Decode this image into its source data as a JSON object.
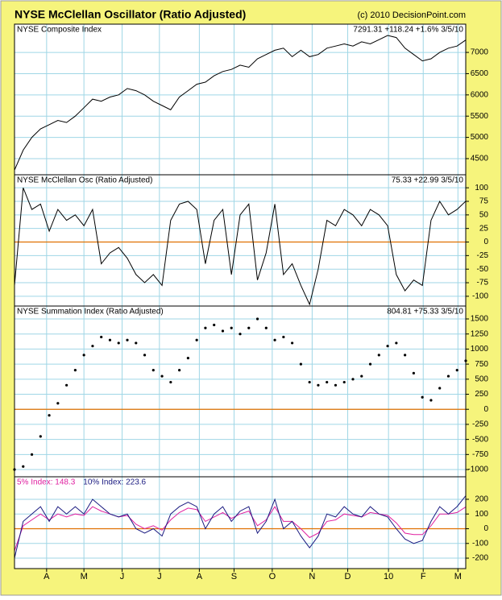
{
  "title": "NYSE McClellan Oscillator (Ratio Adjusted)",
  "copyright": "(c) 2010 DecisionPoint.com",
  "chart_data": [
    {
      "type": "line",
      "title": "NYSE Composite Index",
      "readout": "7291.31 +118.24 +1.6% 3/5/10",
      "color": "#000000",
      "x": [
        0,
        1,
        2,
        3,
        4,
        5,
        6,
        7,
        8,
        9,
        10,
        11,
        12,
        13,
        14,
        15,
        16,
        17,
        18,
        19,
        20,
        21,
        22,
        23,
        24,
        25,
        26,
        27,
        28,
        29,
        30,
        31,
        32,
        33,
        34,
        35,
        36,
        37,
        38,
        39,
        40,
        41,
        42,
        43,
        44,
        45,
        46,
        47,
        48,
        49,
        50,
        51,
        52
      ],
      "values": [
        4230,
        4700,
        5000,
        5200,
        5300,
        5400,
        5350,
        5500,
        5700,
        5900,
        5850,
        5950,
        6000,
        6150,
        6100,
        6000,
        5850,
        5750,
        5650,
        5950,
        6100,
        6250,
        6300,
        6450,
        6550,
        6600,
        6700,
        6650,
        6850,
        6950,
        7050,
        7100,
        6900,
        7050,
        6900,
        6950,
        7100,
        7150,
        7200,
        7150,
        7250,
        7200,
        7300,
        7400,
        7350,
        7100,
        6950,
        6800,
        6850,
        7000,
        7100,
        7150,
        7291.31
      ],
      "xlim": [
        0,
        52
      ],
      "ylim": [
        4120,
        7665
      ],
      "yticks": [
        4500,
        5000,
        5500,
        6000,
        6500,
        7000
      ],
      "grid": true
    },
    {
      "type": "line",
      "title": "NYSE McClellan Osc (Ratio Adjusted)",
      "readout": "75.33 +22.99 3/5/10",
      "color": "#000000",
      "zero_line": 0,
      "zero_color": "#e07000",
      "x": [
        0,
        1,
        2,
        3,
        4,
        5,
        6,
        7,
        8,
        9,
        10,
        11,
        12,
        13,
        14,
        15,
        16,
        17,
        18,
        19,
        20,
        21,
        22,
        23,
        24,
        25,
        26,
        27,
        28,
        29,
        30,
        31,
        32,
        33,
        34,
        35,
        36,
        37,
        38,
        39,
        40,
        41,
        42,
        43,
        44,
        45,
        46,
        47,
        48,
        49,
        50,
        51,
        52
      ],
      "values": [
        -80,
        100,
        60,
        70,
        20,
        60,
        40,
        50,
        30,
        60,
        -40,
        -20,
        -10,
        -30,
        -60,
        -75,
        -60,
        -80,
        40,
        70,
        75,
        60,
        -40,
        40,
        60,
        -60,
        50,
        70,
        -70,
        -20,
        70,
        -60,
        -40,
        -80,
        -115,
        -50,
        40,
        30,
        60,
        50,
        30,
        60,
        50,
        30,
        -60,
        -90,
        -70,
        -80,
        40,
        75,
        50,
        60,
        75.33
      ],
      "xlim": [
        0,
        52
      ],
      "ylim": [
        -118,
        124
      ],
      "yticks": [
        -100,
        -75,
        -50,
        -25,
        0,
        25,
        50,
        75,
        100
      ],
      "grid": true
    },
    {
      "type": "scatter",
      "title": "NYSE Summation Index (Ratio Adjusted)",
      "readout": "804.81 +75.33 3/5/10",
      "color": "#000000",
      "zero_line": 0,
      "zero_color": "#e07000",
      "x": [
        0,
        1,
        2,
        3,
        4,
        5,
        6,
        7,
        8,
        9,
        10,
        11,
        12,
        13,
        14,
        15,
        16,
        17,
        18,
        19,
        20,
        21,
        22,
        23,
        24,
        25,
        26,
        27,
        28,
        29,
        30,
        31,
        32,
        33,
        34,
        35,
        36,
        37,
        38,
        39,
        40,
        41,
        42,
        43,
        44,
        45,
        46,
        47,
        48,
        49,
        50,
        51,
        52
      ],
      "values": [
        -1000,
        -950,
        -750,
        -450,
        -100,
        100,
        400,
        650,
        900,
        1050,
        1200,
        1150,
        1100,
        1150,
        1100,
        900,
        650,
        550,
        450,
        650,
        850,
        1150,
        1350,
        1400,
        1300,
        1350,
        1250,
        1350,
        1500,
        1350,
        1150,
        1200,
        1100,
        750,
        450,
        400,
        450,
        400,
        450,
        500,
        550,
        750,
        900,
        1050,
        1100,
        900,
        600,
        200,
        150,
        350,
        550,
        650,
        804.81
      ],
      "xlim": [
        0,
        52
      ],
      "ylim": [
        -1120,
        1714
      ],
      "yticks": [
        -1000,
        -750,
        -500,
        -250,
        0,
        250,
        500,
        750,
        1000,
        1250,
        1500
      ],
      "grid": true
    },
    {
      "type": "line",
      "zero_line": 0,
      "zero_color": "#e07000",
      "x": [
        0,
        1,
        2,
        3,
        4,
        5,
        6,
        7,
        8,
        9,
        10,
        11,
        12,
        13,
        14,
        15,
        16,
        17,
        18,
        19,
        20,
        21,
        22,
        23,
        24,
        25,
        26,
        27,
        28,
        29,
        30,
        31,
        32,
        33,
        34,
        35,
        36,
        37,
        38,
        39,
        40,
        41,
        42,
        43,
        44,
        45,
        46,
        47,
        48,
        49,
        50,
        51,
        52
      ],
      "series": [
        {
          "name": "5% Index: 148.3",
          "color": "#e020a0",
          "values": [
            -150,
            20,
            60,
            100,
            60,
            100,
            80,
            100,
            90,
            150,
            120,
            100,
            80,
            90,
            30,
            0,
            20,
            -10,
            60,
            110,
            140,
            130,
            50,
            80,
            110,
            70,
            100,
            120,
            20,
            60,
            150,
            50,
            50,
            0,
            -60,
            -30,
            50,
            60,
            100,
            90,
            80,
            110,
            100,
            90,
            40,
            -30,
            -40,
            -40,
            20,
            100,
            100,
            110,
            148.3
          ]
        },
        {
          "name": "10% Index: 223.6",
          "color": "#1a1a80",
          "values": [
            -200,
            50,
            100,
            150,
            50,
            150,
            100,
            150,
            100,
            200,
            150,
            100,
            80,
            100,
            0,
            -30,
            0,
            -50,
            100,
            150,
            180,
            150,
            0,
            100,
            150,
            50,
            120,
            150,
            -30,
            50,
            200,
            0,
            50,
            -50,
            -130,
            -50,
            100,
            80,
            150,
            100,
            80,
            150,
            100,
            80,
            0,
            -70,
            -100,
            -80,
            50,
            150,
            100,
            150,
            223.6
          ]
        }
      ],
      "xlim": [
        0,
        52
      ],
      "ylim": [
        -271,
        353
      ],
      "yticks": [
        -200,
        -100,
        0,
        100,
        200
      ],
      "grid": true,
      "xticks": [
        {
          "value": 3.7,
          "label": "A"
        },
        {
          "value": 8,
          "label": "M"
        },
        {
          "value": 12.4,
          "label": "J"
        },
        {
          "value": 16.7,
          "label": "J"
        },
        {
          "value": 21.3,
          "label": "A"
        },
        {
          "value": 25.3,
          "label": "S"
        },
        {
          "value": 29.7,
          "label": "O"
        },
        {
          "value": 34.3,
          "label": "N"
        },
        {
          "value": 38.4,
          "label": "D"
        },
        {
          "value": 43.1,
          "label": "10"
        },
        {
          "value": 47.1,
          "label": "F"
        },
        {
          "value": 51.1,
          "label": "M"
        }
      ]
    }
  ]
}
